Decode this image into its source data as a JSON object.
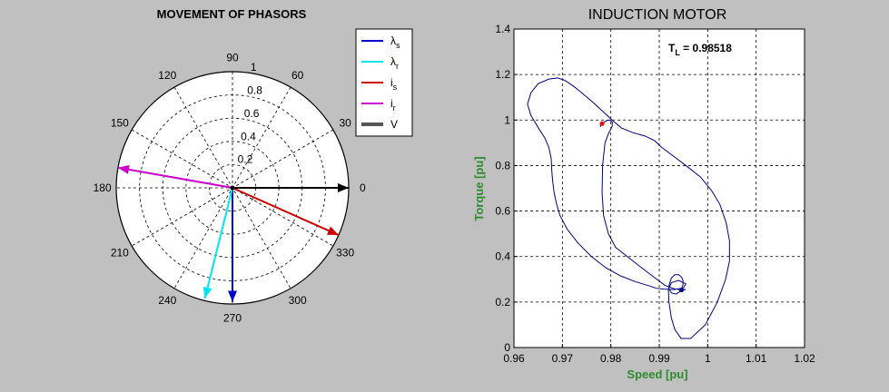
{
  "figure_background": "#c0c0c0",
  "left_panel": {
    "title": "MOVEMENT OF PHASORS",
    "radial_ticks": [
      "0.2",
      "0.4",
      "0.6",
      "0.8",
      "1"
    ],
    "angle_ticks": [
      "0",
      "30",
      "60",
      "90",
      "120",
      "150",
      "180",
      "210",
      "240",
      "270",
      "300",
      "330"
    ],
    "legend": [
      {
        "main": "λ",
        "sub": "s",
        "color": "#0000cc",
        "icon": "blue-line"
      },
      {
        "main": "λ",
        "sub": "r",
        "color": "#00e5ee",
        "icon": "cyan-line"
      },
      {
        "main": "i",
        "sub": "s",
        "color": "#cc0000",
        "icon": "red-line"
      },
      {
        "main": "i",
        "sub": "r",
        "color": "#cc00cc",
        "icon": "magenta-line"
      },
      {
        "main": "V",
        "sub": "",
        "color": "#555555",
        "icon": "gray-thick-line"
      }
    ]
  },
  "right_panel": {
    "title": "INDUCTION MOTOR",
    "xlabel": "Speed [pu]",
    "ylabel": "Torque [pu]",
    "label_color": "#2e8b2e",
    "annotation_main": "T",
    "annotation_sub": "L",
    "annotation_value": " = 0.98518"
  },
  "chart_data": [
    {
      "type": "polar",
      "title": "MOVEMENT OF PHASORS",
      "r_max": 1,
      "r_ticks": [
        0.2,
        0.4,
        0.6,
        0.8,
        1
      ],
      "theta_ticks_deg": [
        0,
        30,
        60,
        90,
        120,
        150,
        180,
        210,
        240,
        270,
        300,
        330
      ],
      "phasors": [
        {
          "name": "λs",
          "magnitude": 0.98,
          "angle_deg": 270,
          "color": "#0000cc"
        },
        {
          "name": "λr",
          "magnitude": 0.98,
          "angle_deg": 256,
          "color": "#00e5ee"
        },
        {
          "name": "is",
          "magnitude": 1.0,
          "angle_deg": 336,
          "color": "#cc0000"
        },
        {
          "name": "ir",
          "magnitude": 1.0,
          "angle_deg": 170,
          "color": "#cc00cc"
        },
        {
          "name": "V",
          "magnitude": 1.0,
          "angle_deg": 0,
          "color": "#000000"
        }
      ]
    },
    {
      "type": "line",
      "title": "INDUCTION MOTOR",
      "xlabel": "Speed [pu]",
      "ylabel": "Torque [pu]",
      "xlim": [
        0.96,
        1.02
      ],
      "ylim": [
        0,
        1.4
      ],
      "x_ticks": [
        0.96,
        0.97,
        0.98,
        0.99,
        1,
        1.01,
        1.02
      ],
      "y_ticks": [
        0,
        0.2,
        0.4,
        0.6,
        0.8,
        1,
        1.2,
        1.4
      ],
      "grid": true,
      "series": [
        {
          "color": "#000080",
          "x": [
            0.9945,
            0.9935,
            0.9925,
            0.992,
            0.9925,
            0.994,
            0.9955,
            0.995,
            0.993,
            0.991,
            0.9895,
            0.9878,
            0.985,
            0.982,
            0.979,
            0.976,
            0.9732,
            0.971,
            0.9695,
            0.9688,
            0.9683,
            0.968,
            0.9678,
            0.9677,
            0.9672,
            0.9664,
            0.9652,
            0.9635,
            0.9628,
            0.9635,
            0.965,
            0.9672,
            0.969,
            0.9705,
            0.9722,
            0.974,
            0.9762,
            0.9785,
            0.9805,
            0.9822,
            0.9845,
            0.987,
            0.989,
            0.9905,
            0.993,
            0.9955,
            0.9985,
            1.0008,
            1.0025,
            1.0038,
            1.0045,
            1.0045,
            1.0037,
            1.002,
            0.9995,
            0.9965,
            0.9945,
            0.9932,
            0.9925,
            0.992,
            0.9919,
            0.9921,
            0.9925,
            0.9932,
            0.994,
            0.9946,
            0.9949,
            0.9949,
            0.9946,
            0.9942,
            0.9942,
            0.995,
            0.9955,
            0.9946,
            0.993,
            0.9912,
            0.9895,
            0.987,
            0.984,
            0.981,
            0.9795,
            0.9785,
            0.9782,
            0.9783,
            0.9788,
            0.9795,
            0.98,
            0.9803,
            0.9803,
            0.9799,
            0.9792,
            0.9786,
            0.978,
            0.9778,
            0.9779,
            0.9782
          ],
          "y": [
            0.25,
            0.235,
            0.24,
            0.26,
            0.285,
            0.295,
            0.28,
            0.262,
            0.255,
            0.257,
            0.26,
            0.272,
            0.29,
            0.315,
            0.35,
            0.4,
            0.46,
            0.52,
            0.58,
            0.63,
            0.68,
            0.73,
            0.78,
            0.83,
            0.88,
            0.92,
            0.96,
            1.02,
            1.07,
            1.12,
            1.16,
            1.18,
            1.185,
            1.175,
            1.15,
            1.12,
            1.08,
            1.035,
            0.995,
            0.965,
            0.945,
            0.93,
            0.91,
            0.88,
            0.84,
            0.8,
            0.75,
            0.69,
            0.63,
            0.55,
            0.47,
            0.38,
            0.3,
            0.2,
            0.1,
            0.04,
            0.04,
            0.08,
            0.13,
            0.2,
            0.25,
            0.28,
            0.305,
            0.32,
            0.32,
            0.31,
            0.295,
            0.275,
            0.26,
            0.253,
            0.252,
            0.255,
            0.255,
            0.253,
            0.259,
            0.273,
            0.3,
            0.34,
            0.39,
            0.44,
            0.5,
            0.58,
            0.68,
            0.8,
            0.9,
            0.94,
            0.96,
            0.975,
            0.99,
            1.0,
            0.998,
            0.99,
            0.978,
            0.97,
            0.975,
            0.984
          ]
        }
      ],
      "markers": [
        {
          "x": 0.9782,
          "y": 0.984,
          "color": "#ff0000"
        },
        {
          "x": 0.9946,
          "y": 0.253,
          "color": "#000080"
        }
      ],
      "annotation": "TL = 0.98518"
    }
  ]
}
